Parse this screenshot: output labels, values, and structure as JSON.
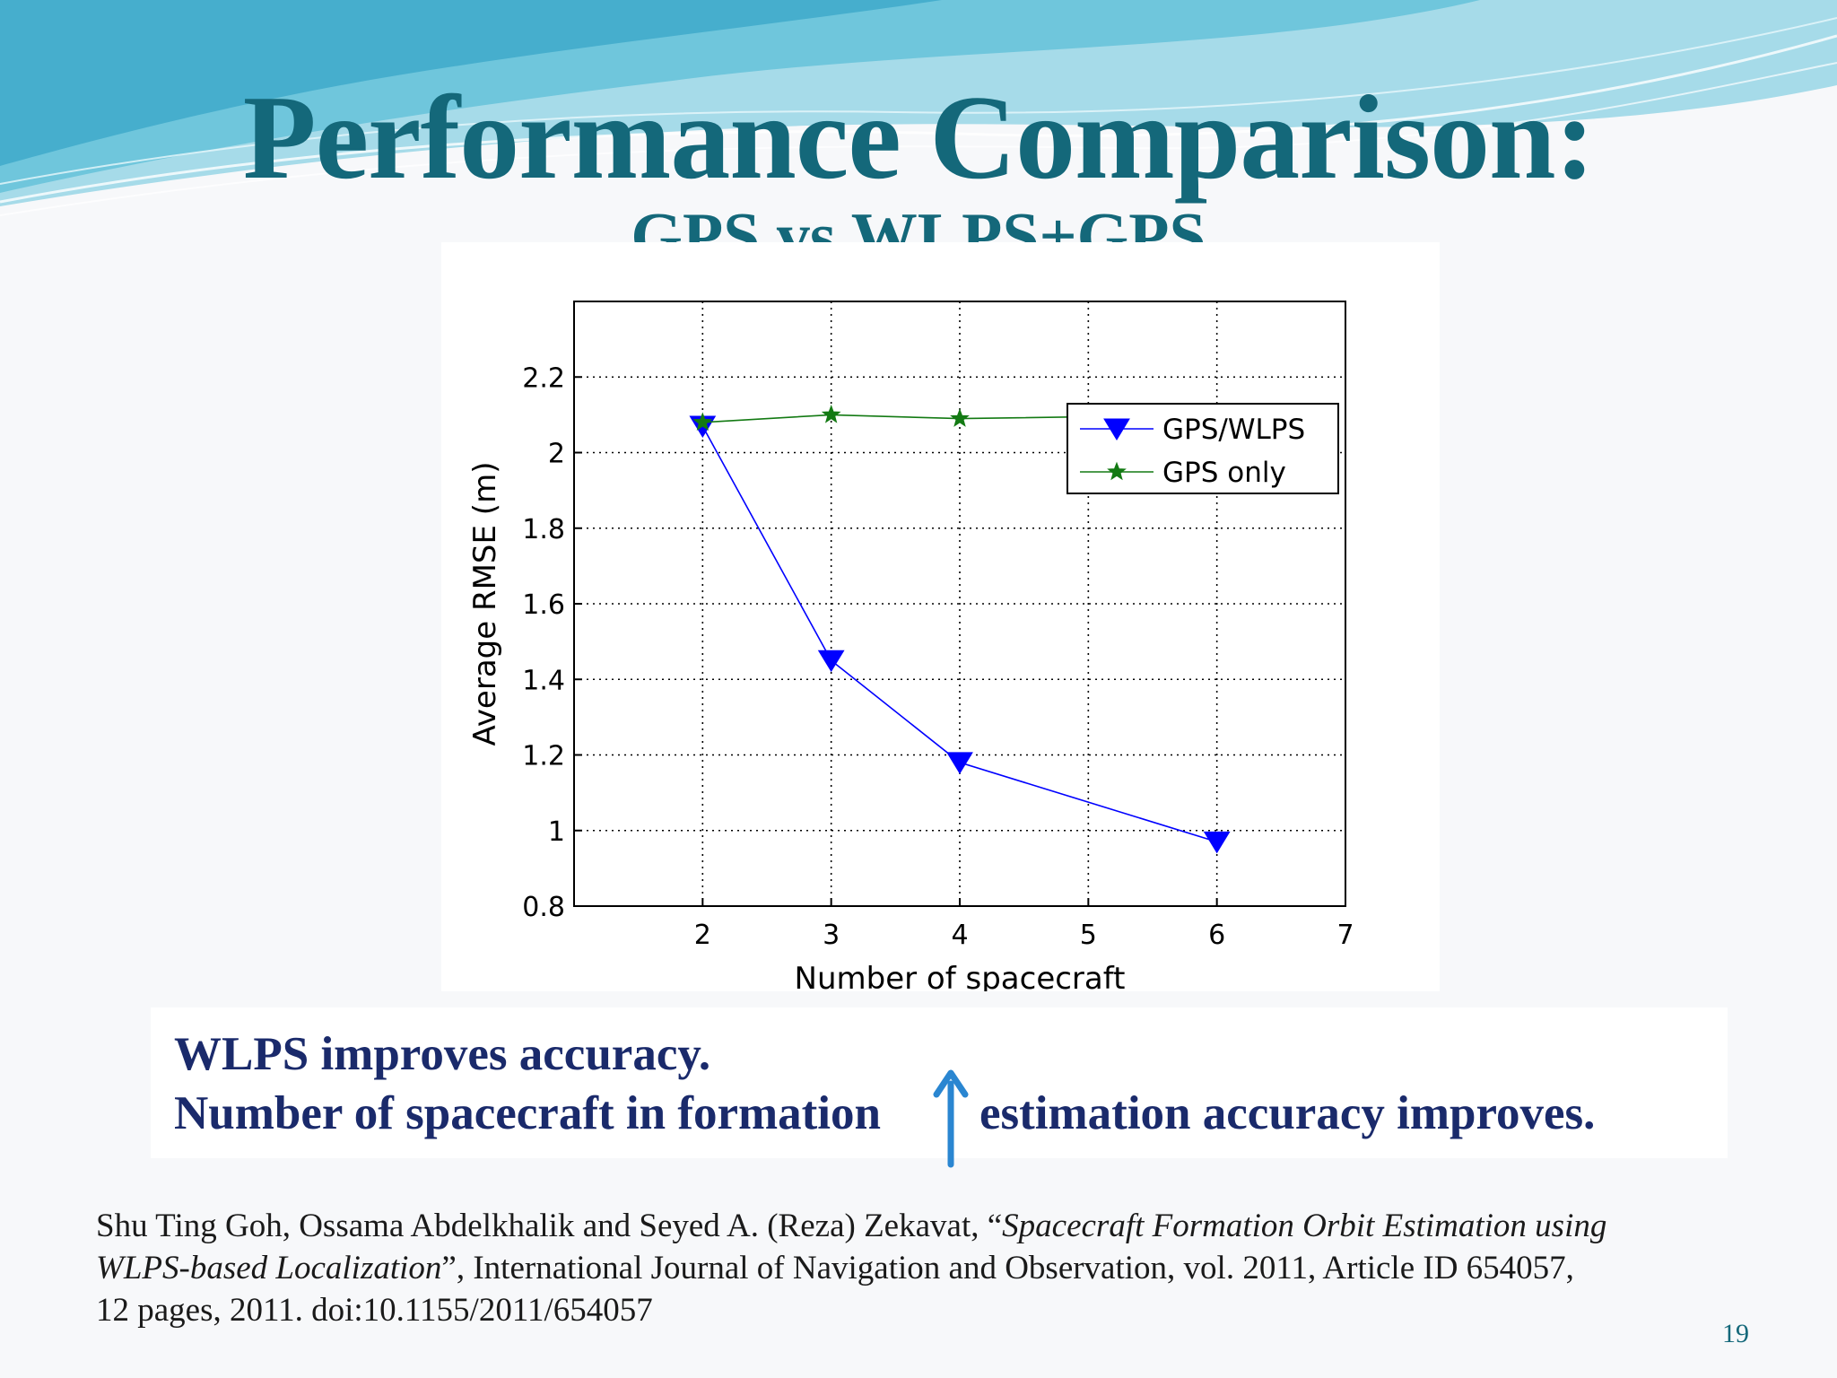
{
  "slide": {
    "title": "Performance Comparison:",
    "subtitle": "GPS vs WLPS+GPS",
    "summary": {
      "line1": "WLPS improves accuracy.",
      "line2_before": "Number of spacecraft in formation",
      "line2_after": "estimation accuracy improves.",
      "arrow_icon": "up-arrow-icon"
    },
    "citation": {
      "authors": "Shu Ting Goh, Ossama Abdelkhalik and Seyed A. (Reza) Zekavat, “",
      "paper_title_part1": "Spacecraft Formation Orbit Estimation using",
      "paper_title_part2": "WLPS-based Localization",
      "after_title": "”, International Journal of Navigation and Observation, vol. 2011, Article ID 654057,",
      "line3": "12 pages, 2011. doi:10.1155/2011/654057"
    },
    "page_number": "19"
  },
  "colors": {
    "title": "#14687a",
    "summary_text": "#1a2a6b",
    "arrow": "#2a86d1",
    "series_gps_wlps": "#0000ff",
    "series_gps_only": "#137a13"
  },
  "chart_data": {
    "type": "line",
    "title": "",
    "xlabel": "Number of spacecraft",
    "ylabel": "Average RMSE (m)",
    "xlim": [
      1,
      7
    ],
    "ylim": [
      0.8,
      2.4
    ],
    "xticks": [
      "2",
      "3",
      "4",
      "5",
      "6",
      "7"
    ],
    "yticks": [
      "0.8",
      "1",
      "1.2",
      "1.4",
      "1.6",
      "1.8",
      "2",
      "2.2"
    ],
    "grid": true,
    "legend_position": "upper-right",
    "series": [
      {
        "name": "GPS/WLPS",
        "marker": "triangle-down",
        "color": "#0000ff",
        "x": [
          2,
          3,
          4,
          6
        ],
        "y": [
          2.07,
          1.45,
          1.18,
          0.97
        ]
      },
      {
        "name": "GPS only",
        "marker": "star",
        "color": "#137a13",
        "x": [
          2,
          3,
          4,
          6
        ],
        "y": [
          2.08,
          2.1,
          2.09,
          2.1
        ]
      }
    ]
  }
}
